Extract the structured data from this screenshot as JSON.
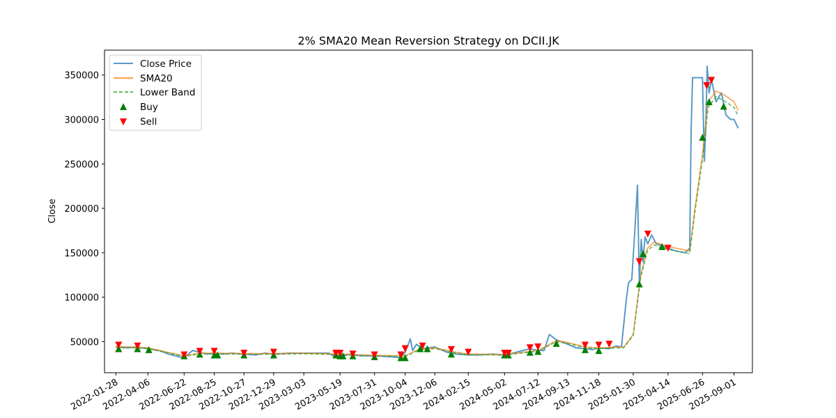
{
  "chart_data": {
    "type": "line",
    "title": "2% SMA20 Mean Reversion Strategy on DCII.JK",
    "xlabel": "",
    "ylabel": "Close",
    "ylim": [
      15000,
      378000
    ],
    "yticks": [
      50000,
      100000,
      150000,
      200000,
      250000,
      300000,
      350000
    ],
    "ytick_labels": [
      "50000",
      "100000",
      "150000",
      "200000",
      "250000",
      "300000",
      "350000"
    ],
    "xticks": [
      "2022-01-28",
      "2022-04-06",
      "2022-06-22",
      "2022-08-25",
      "2022-10-27",
      "2022-12-29",
      "2023-03-03",
      "2023-05-19",
      "2023-07-31",
      "2023-10-04",
      "2023-12-06",
      "2024-02-15",
      "2024-05-02",
      "2024-07-12",
      "2024-09-13",
      "2024-11-18",
      "2025-01-30",
      "2025-04-14",
      "2025-06-26",
      "2025-09-01"
    ],
    "x_range": [
      "2022-01-04",
      "2025-10-10"
    ],
    "grid": false,
    "legend_position": "top-left",
    "colors": {
      "close": "#1f77b4",
      "sma": "#ff7f0e",
      "lower": "#2ca02c",
      "buy": "#008000",
      "sell": "#ff0000"
    },
    "series": [
      {
        "name": "Close Price",
        "style": "solid",
        "points": [
          [
            "2022-01-28",
            44000
          ],
          [
            "2022-02-20",
            43000
          ],
          [
            "2022-03-15",
            44000
          ],
          [
            "2022-04-06",
            42000
          ],
          [
            "2022-04-30",
            40000
          ],
          [
            "2022-05-20",
            36000
          ],
          [
            "2022-06-10",
            33000
          ],
          [
            "2022-06-22",
            32000
          ],
          [
            "2022-07-10",
            40000
          ],
          [
            "2022-07-25",
            38000
          ],
          [
            "2022-08-10",
            36000
          ],
          [
            "2022-08-25",
            37000
          ],
          [
            "2022-09-15",
            36000
          ],
          [
            "2022-10-01",
            37000
          ],
          [
            "2022-10-27",
            36000
          ],
          [
            "2022-11-20",
            35000
          ],
          [
            "2022-12-10",
            37000
          ],
          [
            "2022-12-29",
            36000
          ],
          [
            "2023-02-01",
            37000
          ],
          [
            "2023-03-03",
            37000
          ],
          [
            "2023-04-01",
            37000
          ],
          [
            "2023-04-25",
            37000
          ],
          [
            "2023-05-05",
            34000
          ],
          [
            "2023-05-19",
            33000
          ],
          [
            "2023-06-10",
            36000
          ],
          [
            "2023-07-01",
            34000
          ],
          [
            "2023-07-31",
            34000
          ],
          [
            "2023-09-01",
            33000
          ],
          [
            "2023-09-25",
            32000
          ],
          [
            "2023-10-04",
            38000
          ],
          [
            "2023-10-15",
            53000
          ],
          [
            "2023-10-20",
            40000
          ],
          [
            "2023-10-28",
            47000
          ],
          [
            "2023-11-10",
            42000
          ],
          [
            "2023-12-06",
            44000
          ],
          [
            "2024-01-01",
            38000
          ],
          [
            "2024-01-20",
            36000
          ],
          [
            "2024-02-15",
            35000
          ],
          [
            "2024-03-10",
            35000
          ],
          [
            "2024-04-05",
            36000
          ],
          [
            "2024-05-02",
            35000
          ],
          [
            "2024-05-20",
            37000
          ],
          [
            "2024-06-10",
            40000
          ],
          [
            "2024-06-25",
            42000
          ],
          [
            "2024-07-12",
            40000
          ],
          [
            "2024-07-25",
            40000
          ],
          [
            "2024-08-05",
            58000
          ],
          [
            "2024-08-20",
            52000
          ],
          [
            "2024-09-13",
            47000
          ],
          [
            "2024-10-01",
            43000
          ],
          [
            "2024-10-20",
            42000
          ],
          [
            "2024-11-05",
            41000
          ],
          [
            "2024-11-18",
            43000
          ],
          [
            "2024-12-10",
            42000
          ],
          [
            "2024-12-25",
            45000
          ],
          [
            "2025-01-05",
            44000
          ],
          [
            "2025-01-15",
            95000
          ],
          [
            "2025-01-20",
            116000
          ],
          [
            "2025-01-27",
            120000
          ],
          [
            "2025-02-03",
            180000
          ],
          [
            "2025-02-08",
            226000
          ],
          [
            "2025-02-12",
            115000
          ],
          [
            "2025-02-16",
            165000
          ],
          [
            "2025-02-20",
            140000
          ],
          [
            "2025-02-24",
            168000
          ],
          [
            "2025-03-02",
            160000
          ],
          [
            "2025-03-10",
            170000
          ],
          [
            "2025-03-20",
            160000
          ],
          [
            "2025-04-01",
            158000
          ],
          [
            "2025-04-14",
            155000
          ],
          [
            "2025-05-01",
            152000
          ],
          [
            "2025-05-20",
            150000
          ],
          [
            "2025-05-30",
            155000
          ],
          [
            "2025-06-02",
            290000
          ],
          [
            "2025-06-05",
            347000
          ],
          [
            "2025-06-15",
            347000
          ],
          [
            "2025-06-26",
            347000
          ],
          [
            "2025-06-30",
            253000
          ],
          [
            "2025-07-03",
            290000
          ],
          [
            "2025-07-06",
            360000
          ],
          [
            "2025-07-10",
            330000
          ],
          [
            "2025-07-15",
            345000
          ],
          [
            "2025-07-25",
            320000
          ],
          [
            "2025-08-05",
            330000
          ],
          [
            "2025-08-15",
            305000
          ],
          [
            "2025-08-25",
            300000
          ],
          [
            "2025-09-01",
            300000
          ],
          [
            "2025-09-10",
            290000
          ]
        ]
      },
      {
        "name": "SMA20",
        "style": "solid",
        "points": [
          [
            "2022-01-28",
            44500
          ],
          [
            "2022-03-01",
            44000
          ],
          [
            "2022-04-06",
            43000
          ],
          [
            "2022-05-10",
            39000
          ],
          [
            "2022-06-22",
            34000
          ],
          [
            "2022-07-25",
            37000
          ],
          [
            "2022-08-25",
            37000
          ],
          [
            "2022-10-27",
            36500
          ],
          [
            "2022-12-29",
            36500
          ],
          [
            "2023-03-03",
            37000
          ],
          [
            "2023-05-19",
            36000
          ],
          [
            "2023-07-31",
            34500
          ],
          [
            "2023-10-04",
            34000
          ],
          [
            "2023-11-01",
            41000
          ],
          [
            "2023-12-06",
            43000
          ],
          [
            "2024-01-20",
            38000
          ],
          [
            "2024-02-15",
            36000
          ],
          [
            "2024-05-02",
            35500
          ],
          [
            "2024-07-12",
            40000
          ],
          [
            "2024-08-20",
            51000
          ],
          [
            "2024-09-13",
            49000
          ],
          [
            "2024-10-20",
            44000
          ],
          [
            "2024-11-18",
            43000
          ],
          [
            "2025-01-10",
            44000
          ],
          [
            "2025-01-30",
            58000
          ],
          [
            "2025-02-15",
            125000
          ],
          [
            "2025-03-01",
            155000
          ],
          [
            "2025-03-15",
            162000
          ],
          [
            "2025-04-14",
            157000
          ],
          [
            "2025-05-30",
            152000
          ],
          [
            "2025-06-10",
            200000
          ],
          [
            "2025-06-26",
            260000
          ],
          [
            "2025-07-08",
            320000
          ],
          [
            "2025-07-25",
            332000
          ],
          [
            "2025-08-10",
            328000
          ],
          [
            "2025-09-01",
            320000
          ],
          [
            "2025-09-10",
            310000
          ]
        ]
      },
      {
        "name": "Lower Band",
        "style": "dashed",
        "points": [
          [
            "2022-01-28",
            43600
          ],
          [
            "2022-03-01",
            43100
          ],
          [
            "2022-04-06",
            42100
          ],
          [
            "2022-05-10",
            38200
          ],
          [
            "2022-06-22",
            33300
          ],
          [
            "2022-07-25",
            36300
          ],
          [
            "2022-08-25",
            36300
          ],
          [
            "2022-10-27",
            35800
          ],
          [
            "2022-12-29",
            35800
          ],
          [
            "2023-03-03",
            36300
          ],
          [
            "2023-05-19",
            35300
          ],
          [
            "2023-07-31",
            33800
          ],
          [
            "2023-10-04",
            33300
          ],
          [
            "2023-11-01",
            40200
          ],
          [
            "2023-12-06",
            42100
          ],
          [
            "2024-01-20",
            37200
          ],
          [
            "2024-02-15",
            35300
          ],
          [
            "2024-05-02",
            34800
          ],
          [
            "2024-07-12",
            39200
          ],
          [
            "2024-08-20",
            50000
          ],
          [
            "2024-09-13",
            48000
          ],
          [
            "2024-10-20",
            43100
          ],
          [
            "2024-11-18",
            42100
          ],
          [
            "2025-01-10",
            43100
          ],
          [
            "2025-01-30",
            57000
          ],
          [
            "2025-02-15",
            122500
          ],
          [
            "2025-03-01",
            152000
          ],
          [
            "2025-03-15",
            158800
          ],
          [
            "2025-04-14",
            153900
          ],
          [
            "2025-05-30",
            149000
          ],
          [
            "2025-06-10",
            196000
          ],
          [
            "2025-06-26",
            254800
          ],
          [
            "2025-07-08",
            313600
          ],
          [
            "2025-07-25",
            325400
          ],
          [
            "2025-08-10",
            321400
          ],
          [
            "2025-09-01",
            313600
          ],
          [
            "2025-09-10",
            303800
          ]
        ]
      }
    ],
    "buy_signals": [
      [
        "2022-02-03",
        42000
      ],
      [
        "2022-03-15",
        42000
      ],
      [
        "2022-04-08",
        41000
      ],
      [
        "2022-06-22",
        34000
      ],
      [
        "2022-07-25",
        36000
      ],
      [
        "2022-08-25",
        35000
      ],
      [
        "2022-09-01",
        35000
      ],
      [
        "2022-10-27",
        35000
      ],
      [
        "2022-12-29",
        35000
      ],
      [
        "2023-05-10",
        35000
      ],
      [
        "2023-05-19",
        34000
      ],
      [
        "2023-05-25",
        34000
      ],
      [
        "2023-06-15",
        34000
      ],
      [
        "2023-07-31",
        33000
      ],
      [
        "2023-09-25",
        32000
      ],
      [
        "2023-10-04",
        32000
      ],
      [
        "2023-11-05",
        42000
      ],
      [
        "2023-11-20",
        42000
      ],
      [
        "2024-01-10",
        36000
      ],
      [
        "2024-05-02",
        35000
      ],
      [
        "2024-05-10",
        35000
      ],
      [
        "2024-06-25",
        38000
      ],
      [
        "2024-07-12",
        39000
      ],
      [
        "2024-08-20",
        48000
      ],
      [
        "2024-10-20",
        41000
      ],
      [
        "2024-11-18",
        40000
      ],
      [
        "2025-02-12",
        115000
      ],
      [
        "2025-02-20",
        149000
      ],
      [
        "2025-04-01",
        157000
      ],
      [
        "2025-06-26",
        280000
      ],
      [
        "2025-07-10",
        320000
      ],
      [
        "2025-08-10",
        315000
      ]
    ],
    "sell_signals": [
      [
        "2022-02-03",
        46000
      ],
      [
        "2022-03-15",
        45000
      ],
      [
        "2022-06-22",
        35000
      ],
      [
        "2022-07-25",
        39000
      ],
      [
        "2022-08-25",
        39000
      ],
      [
        "2022-10-27",
        37000
      ],
      [
        "2022-12-29",
        38000
      ],
      [
        "2023-05-10",
        37000
      ],
      [
        "2023-05-19",
        37000
      ],
      [
        "2023-06-15",
        36000
      ],
      [
        "2023-07-31",
        35000
      ],
      [
        "2023-09-25",
        35000
      ],
      [
        "2023-10-04",
        42000
      ],
      [
        "2023-11-10",
        45000
      ],
      [
        "2024-01-10",
        41000
      ],
      [
        "2024-02-15",
        38000
      ],
      [
        "2024-05-02",
        37000
      ],
      [
        "2024-05-10",
        37000
      ],
      [
        "2024-06-25",
        43000
      ],
      [
        "2024-07-12",
        44000
      ],
      [
        "2024-10-20",
        46000
      ],
      [
        "2024-11-18",
        46000
      ],
      [
        "2024-12-10",
        47000
      ],
      [
        "2025-02-12",
        140000
      ],
      [
        "2025-03-02",
        171000
      ],
      [
        "2025-04-14",
        155000
      ],
      [
        "2025-07-05",
        338000
      ],
      [
        "2025-07-15",
        344000
      ]
    ]
  }
}
